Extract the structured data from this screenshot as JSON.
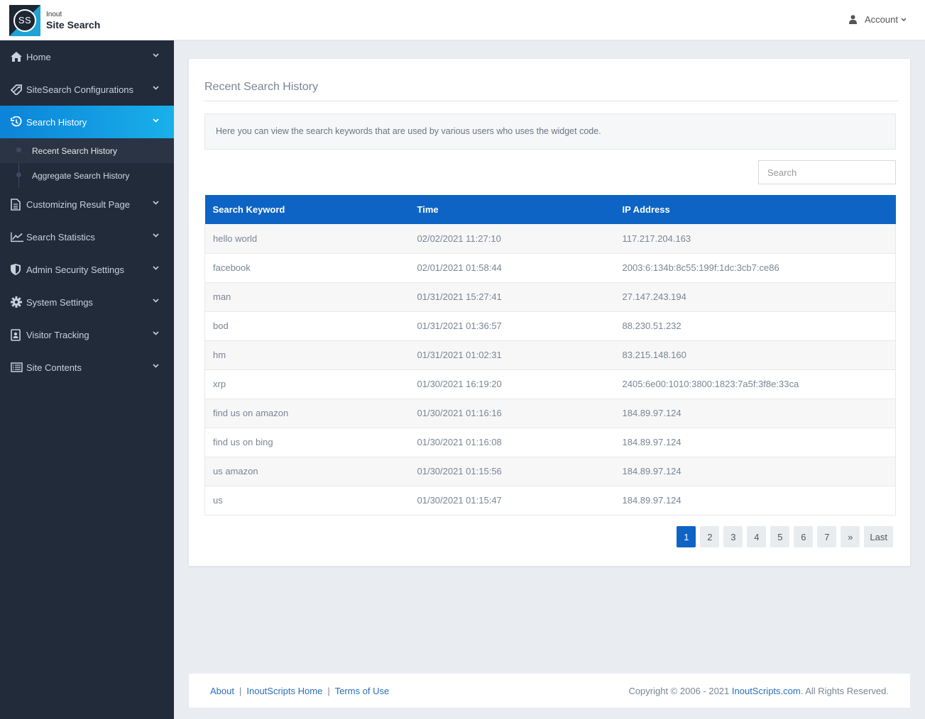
{
  "header": {
    "logo_mark": "SS",
    "logo_small": "Inout",
    "logo_big": "Site Search",
    "account_label": "Account"
  },
  "sidebar": {
    "items": [
      {
        "label": "Home",
        "icon": "home-icon"
      },
      {
        "label": "SiteSearch Configurations",
        "icon": "tag-icon"
      },
      {
        "label": "Search History",
        "icon": "history-icon",
        "active": true
      },
      {
        "label": "Customizing Result Page",
        "icon": "document-icon"
      },
      {
        "label": "Search Statistics",
        "icon": "chart-icon"
      },
      {
        "label": "Admin Security Settings",
        "icon": "shield-icon"
      },
      {
        "label": "System Settings",
        "icon": "gear-icon"
      },
      {
        "label": "Visitor Tracking",
        "icon": "user-badge-icon"
      },
      {
        "label": "Site Contents",
        "icon": "list-icon"
      }
    ],
    "subitems": [
      {
        "label": "Recent Search History",
        "current": true
      },
      {
        "label": "Aggregate Search History"
      }
    ]
  },
  "main": {
    "title": "Recent Search History",
    "info": "Here you can view the search keywords that are used by various users who uses the widget code.",
    "search_placeholder": "Search",
    "table": {
      "headers": [
        "Search Keyword",
        "Time",
        "IP Address"
      ],
      "rows": [
        [
          "hello world",
          "02/02/2021 11:27:10",
          "117.217.204.163"
        ],
        [
          "facebook",
          "02/01/2021 01:58:44",
          "2003:6:134b:8c55:199f:1dc:3cb7:ce86"
        ],
        [
          "man",
          "01/31/2021 15:27:41",
          "27.147.243.194"
        ],
        [
          "bod",
          "01/31/2021 01:36:57",
          "88.230.51.232"
        ],
        [
          "hm",
          "01/31/2021 01:02:31",
          "83.215.148.160"
        ],
        [
          "xrp",
          "01/30/2021 16:19:20",
          "2405:6e00:1010:3800:1823:7a5f:3f8e:33ca"
        ],
        [
          "find us on amazon",
          "01/30/2021 01:16:16",
          "184.89.97.124"
        ],
        [
          "find us on bing",
          "01/30/2021 01:16:08",
          "184.89.97.124"
        ],
        [
          "us amazon",
          "01/30/2021 01:15:56",
          "184.89.97.124"
        ],
        [
          "us",
          "01/30/2021 01:15:47",
          "184.89.97.124"
        ]
      ]
    },
    "pagination": [
      "1",
      "2",
      "3",
      "4",
      "5",
      "6",
      "7",
      "»",
      "Last"
    ],
    "current_page": "1"
  },
  "footer": {
    "links": [
      "About",
      "InoutScripts Home",
      "Terms of Use"
    ],
    "separator": "|",
    "copyright_prefix": "Copyright © 2006 - 2021 ",
    "copyright_link": "InoutScripts.com",
    "copyright_suffix": ". All Rights Reserved."
  },
  "colors": {
    "sidebar_bg": "#212b3a",
    "accent": "#0d64c4",
    "active_gradient_start": "#0c83d8",
    "active_gradient_end": "#19b0ea"
  }
}
